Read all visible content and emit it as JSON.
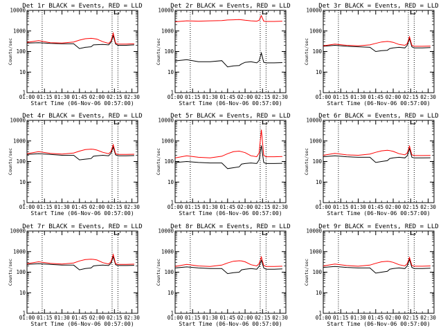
{
  "figure": {
    "panel_count": 9,
    "x_tick_labels": [
      "01:00",
      "01:15",
      "01:30",
      "01:45",
      "02:00",
      "02:15",
      "02:30"
    ],
    "y_tick_labels": [
      "1",
      "10",
      "100",
      "1000",
      "10000"
    ],
    "xlabel": "Start Time (06-Nov-06 00:57:00)",
    "ylabel": "Counts/sec",
    "colors": {
      "events": "#000000",
      "lld": "#ff0000",
      "axes": "#000000"
    }
  },
  "chart_data": [
    {
      "type": "line",
      "title": "Det 1r BLACK = Events, RED = LLD",
      "xlabel": "Start Time (06-Nov-06 00:57:00)",
      "ylabel": "Counts/sec",
      "xlim": [
        "01:00",
        "02:35"
      ],
      "ylim": [
        1,
        10000
      ],
      "yscale": "log",
      "vlines": [
        "01:13",
        "02:13",
        "02:18"
      ],
      "marker": "02:17",
      "x": [
        "01:00",
        "01:10",
        "01:20",
        "01:30",
        "01:40",
        "01:45",
        "01:50",
        "01:55",
        "01:57",
        "02:00",
        "02:05",
        "02:10",
        "02:12",
        "02:14",
        "02:16",
        "02:18",
        "02:25",
        "02:32"
      ],
      "series": [
        {
          "name": "Events",
          "color": "#000000",
          "values": [
            260,
            270,
            250,
            240,
            240,
            140,
            160,
            170,
            210,
            215,
            220,
            210,
            280,
            580,
            230,
            200,
            200,
            210
          ]
        },
        {
          "name": "LLD",
          "color": "#ff0000",
          "values": [
            280,
            340,
            270,
            260,
            290,
            360,
            420,
            440,
            430,
            400,
            300,
            250,
            320,
            780,
            260,
            230,
            230,
            240
          ]
        }
      ]
    },
    {
      "type": "line",
      "title": "Det 2r BLACK = Events, RED = LLD",
      "xlabel": "Start Time (06-Nov-06 00:57:00)",
      "ylabel": "Counts/sec",
      "xlim": [
        "01:00",
        "02:35"
      ],
      "ylim": [
        1,
        10000
      ],
      "yscale": "log",
      "vlines": [
        "01:13",
        "02:13",
        "02:18"
      ],
      "marker": "02:17",
      "x": [
        "01:00",
        "01:10",
        "01:20",
        "01:30",
        "01:40",
        "01:45",
        "01:50",
        "01:55",
        "01:57",
        "02:00",
        "02:05",
        "02:10",
        "02:12",
        "02:14",
        "02:16",
        "02:18",
        "02:25",
        "02:32"
      ],
      "series": [
        {
          "name": "Events",
          "color": "#000000",
          "values": [
            35,
            40,
            32,
            32,
            36,
            18,
            20,
            21,
            25,
            30,
            32,
            28,
            35,
            85,
            30,
            28,
            28,
            29
          ]
        },
        {
          "name": "LLD",
          "color": "#ff0000",
          "values": [
            2800,
            3100,
            3000,
            3100,
            3200,
            3400,
            3500,
            3600,
            3500,
            3300,
            3100,
            3000,
            3300,
            5500,
            3000,
            2900,
            2900,
            3000
          ]
        }
      ]
    },
    {
      "type": "line",
      "title": "Det 3r BLACK = Events, RED = LLD",
      "xlabel": "Start Time (06-Nov-06 00:57:00)",
      "ylabel": "Counts/sec",
      "xlim": [
        "01:00",
        "02:35"
      ],
      "ylim": [
        1,
        10000
      ],
      "yscale": "log",
      "vlines": [
        "01:13",
        "02:13",
        "02:18"
      ],
      "marker": "02:17",
      "x": [
        "01:00",
        "01:10",
        "01:20",
        "01:30",
        "01:40",
        "01:45",
        "01:50",
        "01:55",
        "01:57",
        "02:00",
        "02:05",
        "02:10",
        "02:12",
        "02:14",
        "02:16",
        "02:18",
        "02:25",
        "02:32"
      ],
      "series": [
        {
          "name": "Events",
          "color": "#000000",
          "values": [
            180,
            200,
            180,
            170,
            160,
            100,
            110,
            115,
            140,
            150,
            160,
            150,
            200,
            420,
            170,
            150,
            150,
            155
          ]
        },
        {
          "name": "LLD",
          "color": "#ff0000",
          "values": [
            190,
            230,
            200,
            190,
            210,
            250,
            290,
            310,
            300,
            280,
            220,
            200,
            240,
            520,
            200,
            180,
            180,
            185
          ]
        }
      ]
    },
    {
      "type": "line",
      "title": "Det 4r BLACK = Events, RED = LLD",
      "xlabel": "Start Time (06-Nov-06 00:57:00)",
      "ylabel": "Counts/sec",
      "xlim": [
        "01:00",
        "02:35"
      ],
      "ylim": [
        1,
        10000
      ],
      "yscale": "log",
      "vlines": [
        "01:13",
        "02:13",
        "02:18"
      ],
      "marker": "02:17",
      "x": [
        "01:00",
        "01:10",
        "01:20",
        "01:30",
        "01:40",
        "01:45",
        "01:50",
        "01:55",
        "01:57",
        "02:00",
        "02:05",
        "02:10",
        "02:12",
        "02:14",
        "02:16",
        "02:18",
        "02:25",
        "02:32"
      ],
      "series": [
        {
          "name": "Events",
          "color": "#000000",
          "values": [
            220,
            240,
            220,
            200,
            200,
            120,
            130,
            140,
            180,
            190,
            200,
            190,
            250,
            500,
            210,
            190,
            190,
            195
          ]
        },
        {
          "name": "LLD",
          "color": "#ff0000",
          "values": [
            240,
            300,
            250,
            230,
            260,
            320,
            380,
            400,
            390,
            360,
            280,
            240,
            300,
            650,
            240,
            220,
            220,
            225
          ]
        }
      ]
    },
    {
      "type": "line",
      "title": "Det 5r BLACK = Events, RED = LLD",
      "xlabel": "Start Time (06-Nov-06 00:57:00)",
      "ylabel": "Counts/sec",
      "xlim": [
        "01:00",
        "02:35"
      ],
      "ylim": [
        1,
        10000
      ],
      "yscale": "log",
      "vlines": [
        "01:13",
        "02:13",
        "02:18"
      ],
      "marker": "02:17",
      "x": [
        "01:00",
        "01:10",
        "01:20",
        "01:30",
        "01:40",
        "01:45",
        "01:50",
        "01:55",
        "01:57",
        "02:00",
        "02:05",
        "02:10",
        "02:12",
        "02:14",
        "02:16",
        "02:18",
        "02:25",
        "02:32"
      ],
      "series": [
        {
          "name": "Events",
          "color": "#000000",
          "values": [
            90,
            100,
            90,
            85,
            85,
            45,
            50,
            55,
            75,
            80,
            85,
            80,
            120,
            600,
            90,
            80,
            80,
            82
          ]
        },
        {
          "name": "LLD",
          "color": "#ff0000",
          "values": [
            150,
            190,
            160,
            150,
            180,
            240,
            300,
            320,
            300,
            270,
            190,
            170,
            260,
            3500,
            200,
            170,
            170,
            175
          ]
        }
      ]
    },
    {
      "type": "line",
      "title": "Det 6r BLACK = Events, RED = LLD",
      "xlabel": "Start Time (06-Nov-06 00:57:00)",
      "ylabel": "Counts/sec",
      "xlim": [
        "01:00",
        "02:35"
      ],
      "ylim": [
        1,
        10000
      ],
      "yscale": "log",
      "vlines": [
        "01:13",
        "02:13",
        "02:18"
      ],
      "marker": "02:17",
      "x": [
        "01:00",
        "01:10",
        "01:20",
        "01:30",
        "01:40",
        "01:45",
        "01:50",
        "01:55",
        "01:57",
        "02:00",
        "02:05",
        "02:10",
        "02:12",
        "02:14",
        "02:16",
        "02:18",
        "02:25",
        "02:32"
      ],
      "series": [
        {
          "name": "Events",
          "color": "#000000",
          "values": [
            170,
            190,
            170,
            160,
            160,
            90,
            100,
            110,
            140,
            150,
            160,
            150,
            190,
            420,
            160,
            150,
            150,
            152
          ]
        },
        {
          "name": "LLD",
          "color": "#ff0000",
          "values": [
            200,
            250,
            210,
            200,
            230,
            280,
            330,
            350,
            340,
            310,
            240,
            210,
            260,
            560,
            210,
            195,
            195,
            198
          ]
        }
      ]
    },
    {
      "type": "line",
      "title": "Det 7r BLACK = Events, RED = LLD",
      "xlabel": "Start Time (06-Nov-06 00:57:00)",
      "ylabel": "Counts/sec",
      "xlim": [
        "01:00",
        "02:35"
      ],
      "ylim": [
        1,
        10000
      ],
      "yscale": "log",
      "vlines": [
        "01:13",
        "02:13",
        "02:18"
      ],
      "marker": "02:17",
      "x": [
        "01:00",
        "01:10",
        "01:20",
        "01:30",
        "01:40",
        "01:45",
        "01:50",
        "01:55",
        "01:57",
        "02:00",
        "02:05",
        "02:10",
        "02:12",
        "02:14",
        "02:16",
        "02:18",
        "02:25",
        "02:32"
      ],
      "series": [
        {
          "name": "Events",
          "color": "#000000",
          "values": [
            240,
            260,
            240,
            220,
            220,
            130,
            150,
            160,
            200,
            210,
            220,
            210,
            270,
            560,
            230,
            210,
            210,
            215
          ]
        },
        {
          "name": "LLD",
          "color": "#ff0000",
          "values": [
            260,
            320,
            270,
            250,
            280,
            350,
            410,
            430,
            420,
            390,
            290,
            250,
            320,
            720,
            260,
            240,
            240,
            245
          ]
        }
      ]
    },
    {
      "type": "line",
      "title": "Det 8r BLACK = Events, RED = LLD",
      "xlabel": "Start Time (06-Nov-06 00:57:00)",
      "ylabel": "Counts/sec",
      "xlim": [
        "01:00",
        "02:35"
      ],
      "ylim": [
        1,
        10000
      ],
      "yscale": "log",
      "vlines": [
        "01:13",
        "02:13",
        "02:18"
      ],
      "marker": "02:17",
      "x": [
        "01:00",
        "01:10",
        "01:20",
        "01:30",
        "01:40",
        "01:45",
        "01:50",
        "01:55",
        "01:57",
        "02:00",
        "02:05",
        "02:10",
        "02:12",
        "02:14",
        "02:16",
        "02:18",
        "02:25",
        "02:32"
      ],
      "series": [
        {
          "name": "Events",
          "color": "#000000",
          "values": [
            160,
            180,
            160,
            150,
            150,
            85,
            95,
            100,
            130,
            140,
            150,
            140,
            190,
            380,
            160,
            140,
            140,
            145
          ]
        },
        {
          "name": "LLD",
          "color": "#ff0000",
          "values": [
            190,
            240,
            200,
            190,
            220,
            280,
            340,
            360,
            350,
            320,
            230,
            200,
            260,
            550,
            210,
            190,
            190,
            195
          ]
        }
      ]
    },
    {
      "type": "line",
      "title": "Det 9r BLACK = Events, RED = LLD",
      "xlabel": "Start Time (06-Nov-06 00:57:00)",
      "ylabel": "Counts/sec",
      "xlim": [
        "01:00",
        "02:35"
      ],
      "ylim": [
        1,
        10000
      ],
      "yscale": "log",
      "vlines": [
        "01:13",
        "02:13",
        "02:18"
      ],
      "marker": "02:17",
      "x": [
        "01:00",
        "01:10",
        "01:20",
        "01:30",
        "01:40",
        "01:45",
        "01:50",
        "01:55",
        "01:57",
        "02:00",
        "02:05",
        "02:10",
        "02:12",
        "02:14",
        "02:16",
        "02:18",
        "02:25",
        "02:32"
      ],
      "series": [
        {
          "name": "Events",
          "color": "#000000",
          "values": [
            170,
            190,
            170,
            160,
            160,
            90,
            100,
            110,
            140,
            150,
            160,
            150,
            200,
            420,
            170,
            150,
            150,
            155
          ]
        },
        {
          "name": "LLD",
          "color": "#ff0000",
          "values": [
            200,
            250,
            210,
            195,
            220,
            270,
            320,
            340,
            330,
            300,
            230,
            200,
            260,
            520,
            210,
            195,
            195,
            200
          ]
        }
      ]
    }
  ]
}
